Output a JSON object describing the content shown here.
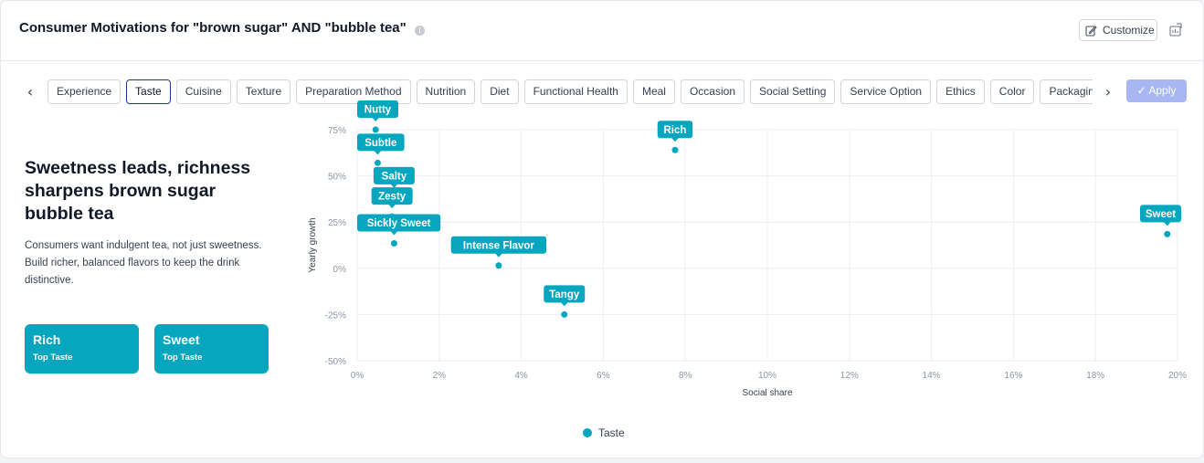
{
  "header": {
    "title": "Consumer Motivations for \"brown sugar\" AND \"bubble tea\"",
    "info_icon": "i",
    "customize_label": "Customize"
  },
  "tabs": [
    "Experience",
    "Taste",
    "Cuisine",
    "Texture",
    "Preparation Method",
    "Nutrition",
    "Diet",
    "Functional Health",
    "Meal",
    "Occasion",
    "Social Setting",
    "Service Option",
    "Ethics",
    "Color",
    "Packaging"
  ],
  "active_tab": "Taste",
  "nav": {
    "prev": "‹",
    "next": "›"
  },
  "apply_label": "✓ Apply",
  "insight": {
    "headline": "Sweetness leads, richness sharpens brown sugar bubble tea",
    "description": "Consumers want indulgent tea, not just sweetness. Build richer, balanced flavors to keep the drink distinctive."
  },
  "kpis": [
    {
      "title": "Rich",
      "subtitle": "Top Taste"
    },
    {
      "title": "Sweet",
      "subtitle": "Top Taste"
    }
  ],
  "colors": {
    "accent": "#06a6bf",
    "apply": "#a8b7f3"
  },
  "chart_data": {
    "type": "scatter",
    "xlabel": "Social share",
    "ylabel": "Yearly growth",
    "x_unit": "%",
    "y_unit": "%",
    "xlim": [
      0,
      20
    ],
    "ylim": [
      -50,
      75
    ],
    "x_ticks": [
      "0%",
      "2%",
      "4%",
      "6%",
      "8%",
      "10%",
      "12%",
      "14%",
      "16%",
      "18%",
      "20%"
    ],
    "y_ticks": [
      "75%",
      "50%",
      "25%",
      "0%",
      "-25%",
      "-50%"
    ],
    "grid": true,
    "legend": "bottom-center",
    "series": [
      {
        "name": "Taste",
        "points": [
          {
            "label": "Nutty",
            "x": 0.45,
            "y": 75
          },
          {
            "label": "Subtle",
            "x": 0.5,
            "y": 57
          },
          {
            "label": "Rich",
            "x": 7.75,
            "y": 64
          },
          {
            "label": "Salty",
            "x": 0.9,
            "y": 39
          },
          {
            "label": "Zesty",
            "x": 0.85,
            "y": 28
          },
          {
            "label": "Sickly Sweet",
            "x": 0.9,
            "y": 13.5
          },
          {
            "label": "Intense Flavor",
            "x": 3.45,
            "y": 1.5
          },
          {
            "label": "Tangy",
            "x": 5.05,
            "y": -25
          },
          {
            "label": "Sweet",
            "x": 19.75,
            "y": 18.5
          }
        ]
      }
    ]
  }
}
